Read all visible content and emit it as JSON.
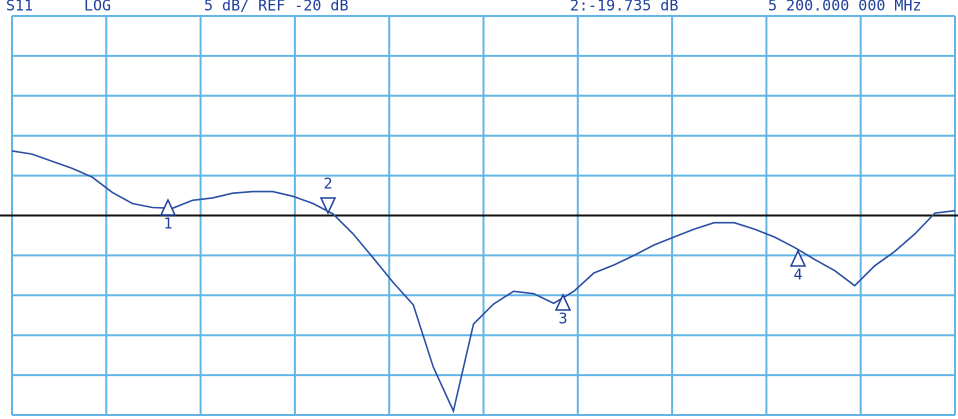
{
  "chart_data": {
    "type": "line",
    "header": [
      "S11",
      "LOG",
      "5 dB/ REF -20 dB",
      "2:-19.735 dB",
      "5 200.000 000 MHz"
    ],
    "series": [
      {
        "color": "#2c4fa6",
        "values": [
          -11.9,
          -12.3,
          -13.2,
          -14.1,
          -15.2,
          -17.1,
          -18.5,
          -19.0,
          -19.1,
          -18.1,
          -17.8,
          -17.2,
          -17.0,
          -17.0,
          -17.6,
          -18.5,
          -19.8,
          -22.3,
          -25.3,
          -28.4,
          -31.2,
          -39,
          -44.5,
          -33.6,
          -31.1,
          -29.5,
          -29.8,
          -31.0,
          -29.5,
          -27.2,
          -26.2,
          -25.0,
          -23.7,
          -22.7,
          -21.7,
          -20.9,
          -20.9,
          -21.7,
          -22.7,
          -24.0,
          -25.5,
          -26.9,
          -28.8,
          -26.3,
          -24.5,
          -22.3,
          -19.7,
          -19.4
        ]
      }
    ],
    "ref_level": -20,
    "ylim": [
      -45,
      5
    ],
    "yticks": [
      -45,
      -40,
      -35,
      -30,
      -25,
      -20,
      -15,
      -10,
      -5,
      0,
      5
    ],
    "grid": true,
    "markers": [
      "1",
      "2",
      "3",
      "4"
    ]
  }
}
